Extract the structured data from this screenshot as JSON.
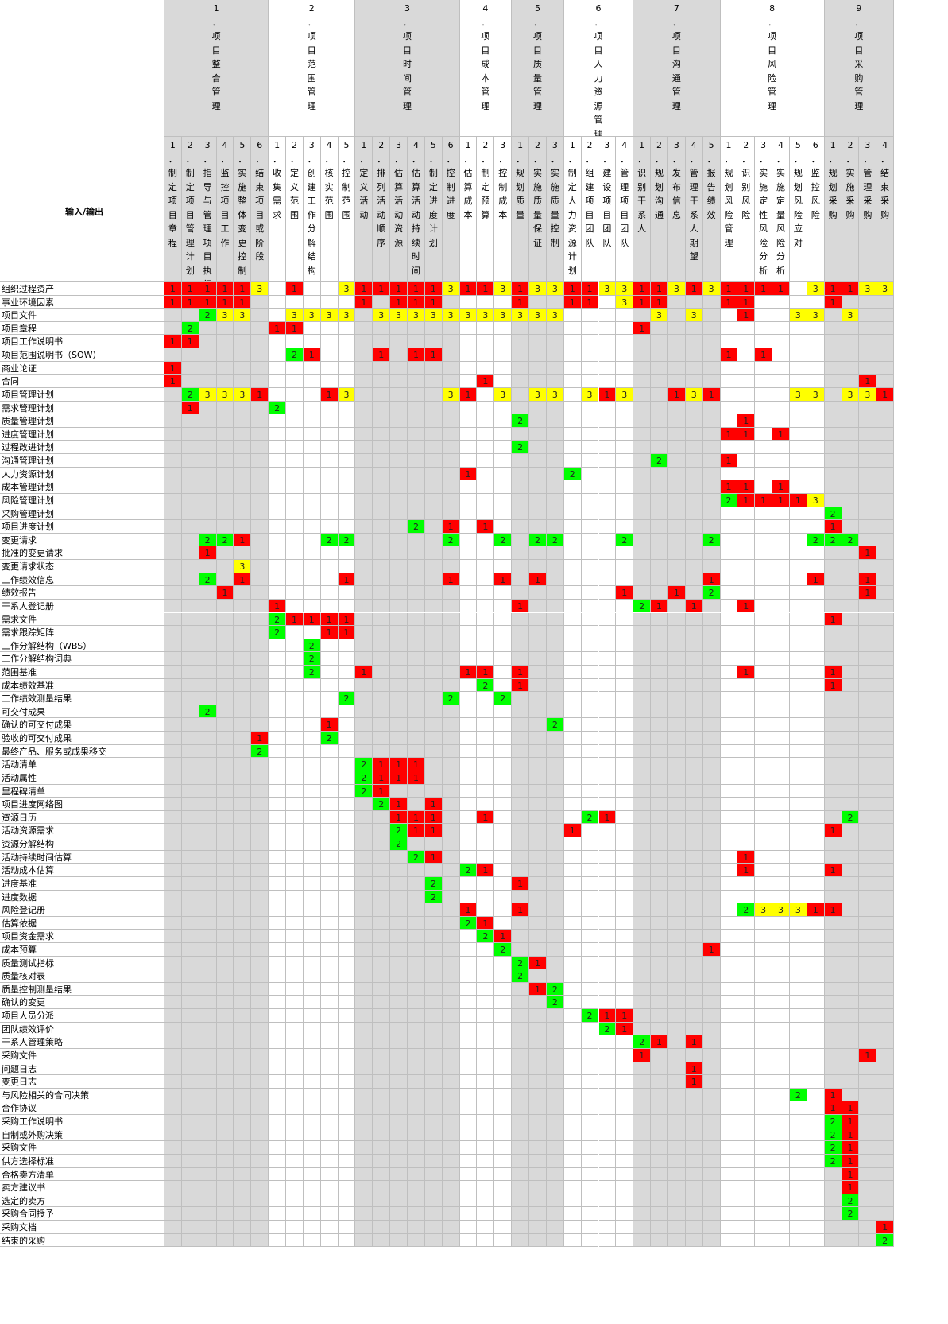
{
  "corner_label": "输入/输出",
  "colors": {
    "red": "#ff0000",
    "yellow": "#ffff00",
    "green": "#00ff00",
    "grey": "#d9d9d9",
    "white": "#ffffff",
    "grid": "#bfbfbf"
  },
  "areas": [
    {
      "label": "1．项目整合管理",
      "shade": "grey"
    },
    {
      "label": "2．项目范围管理",
      "shade": "white"
    },
    {
      "label": "3．项目时间管理",
      "shade": "grey"
    },
    {
      "label": "4．项目成本管理",
      "shade": "white"
    },
    {
      "label": "5．项目质量管理",
      "shade": "grey"
    },
    {
      "label": "6．项目人力资源管理",
      "shade": "white"
    },
    {
      "label": "7．项目沟通管理",
      "shade": "grey"
    },
    {
      "label": "8．项目风险管理",
      "shade": "white"
    },
    {
      "label": "9．项目采购管理",
      "shade": "grey"
    }
  ],
  "processes": [
    {
      "area": 0,
      "label": "1．制定项目章程"
    },
    {
      "area": 0,
      "label": "2．制定项目管理计划"
    },
    {
      "area": 0,
      "label": "3．指导与管理项目执行"
    },
    {
      "area": 0,
      "label": "4．监控项目工作"
    },
    {
      "area": 0,
      "label": "5．实施整体变更控制"
    },
    {
      "area": 0,
      "label": "6．结束项目或阶段"
    },
    {
      "area": 1,
      "label": "1．收集需求"
    },
    {
      "area": 1,
      "label": "2．定义范围"
    },
    {
      "area": 1,
      "label": "3．创建工作分解结构"
    },
    {
      "area": 1,
      "label": "4．核实范围"
    },
    {
      "area": 1,
      "label": "5．控制范围"
    },
    {
      "area": 2,
      "label": "1．定义活动"
    },
    {
      "area": 2,
      "label": "2．排列活动顺序"
    },
    {
      "area": 2,
      "label": "3．估算活动资源"
    },
    {
      "area": 2,
      "label": "4．估算活动持续时间"
    },
    {
      "area": 2,
      "label": "5．制定进度计划"
    },
    {
      "area": 2,
      "label": "6．控制进度"
    },
    {
      "area": 3,
      "label": "1．估算成本"
    },
    {
      "area": 3,
      "label": "2．制定预算"
    },
    {
      "area": 3,
      "label": "3．控制成本"
    },
    {
      "area": 4,
      "label": "1．规划质量"
    },
    {
      "area": 4,
      "label": "2．实施质量保证"
    },
    {
      "area": 4,
      "label": "3．实施质量控制"
    },
    {
      "area": 5,
      "label": "1．制定人力资源计划"
    },
    {
      "area": 5,
      "label": "2．组建项目团队"
    },
    {
      "area": 5,
      "label": "3．建设项目团队"
    },
    {
      "area": 5,
      "label": "4．管理项目团队"
    },
    {
      "area": 6,
      "label": "1．识别干系人"
    },
    {
      "area": 6,
      "label": "2．规划沟通"
    },
    {
      "area": 6,
      "label": "3．发布信息"
    },
    {
      "area": 6,
      "label": "4．管理干系人期望"
    },
    {
      "area": 6,
      "label": "5．报告绩效"
    },
    {
      "area": 7,
      "label": "1．规划风险管理"
    },
    {
      "area": 7,
      "label": "2．识别风险"
    },
    {
      "area": 7,
      "label": "3．实施定性风险分析"
    },
    {
      "area": 7,
      "label": "4．实施定量风险分析"
    },
    {
      "area": 7,
      "label": "5．规划风险应对"
    },
    {
      "area": 7,
      "label": "6．监控风险"
    },
    {
      "area": 8,
      "label": "1．规划采购"
    },
    {
      "area": 8,
      "label": "2．实施采购"
    },
    {
      "area": 8,
      "label": "3．管理采购"
    },
    {
      "area": 8,
      "label": "4．结束采购"
    }
  ],
  "rows": [
    {
      "label": "组织过程资产",
      "cells": {
        "0": 1,
        "1": 1,
        "2": 1,
        "3": 1,
        "4": 1,
        "5": 3,
        "7": 1,
        "10": 3,
        "11": 1,
        "12": 1,
        "13": 1,
        "14": 1,
        "15": 1,
        "16": 3,
        "17": 1,
        "18": 1,
        "19": 3,
        "20": 1,
        "21": 3,
        "22": 3,
        "23": 1,
        "24": 1,
        "25": 3,
        "26": 3,
        "27": 1,
        "28": 1,
        "29": 3,
        "30": 1,
        "31": 3,
        "32": 1,
        "33": 1,
        "34": 1,
        "35": 1,
        "37": 3,
        "38": 1,
        "39": 1,
        "40": 3,
        "41": 3
      }
    },
    {
      "label": "事业环境因素",
      "cells": {
        "0": 1,
        "1": 1,
        "2": 1,
        "3": 1,
        "4": 1,
        "11": 1,
        "13": 1,
        "14": 1,
        "15": 1,
        "20": 1,
        "23": 1,
        "24": 1,
        "26": 3,
        "27": 1,
        "28": 1,
        "32": 1,
        "33": 1,
        "38": 1
      }
    },
    {
      "label": "项目文件",
      "cells": {
        "2": 2,
        "3": 3,
        "4": 3,
        "7": 3,
        "8": 3,
        "9": 3,
        "10": 3,
        "12": 3,
        "13": 3,
        "14": 3,
        "15": 3,
        "16": 3,
        "17": 3,
        "18": 3,
        "19": 3,
        "20": 3,
        "21": 3,
        "22": 3,
        "28": 3,
        "30": 3,
        "33": 1,
        "36": 3,
        "37": 3,
        "39": 3
      }
    },
    {
      "label": "项目章程",
      "cells": {
        "1": 2,
        "6": 1,
        "7": 1,
        "27": 1
      }
    },
    {
      "label": "项目工作说明书",
      "cells": {
        "0": 1,
        "1": 1
      }
    },
    {
      "label": "项目范围说明书（SOW）",
      "cells": {
        "7": 2,
        "8": 1,
        "12": 1,
        "14": 1,
        "15": 1,
        "32": 1,
        "34": 1
      }
    },
    {
      "label": "商业论证",
      "cells": {
        "0": 1
      }
    },
    {
      "label": "合同",
      "cells": {
        "0": 1,
        "18": 1,
        "40": 1
      }
    },
    {
      "label": "项目管理计划",
      "cells": {
        "1": 2,
        "2": 3,
        "3": 3,
        "4": 3,
        "5": 1,
        "9": 1,
        "10": 3,
        "16": 3,
        "17": 1,
        "19": 3,
        "21": 3,
        "22": 3,
        "24": 3,
        "25": 1,
        "26": 3,
        "29": 1,
        "30": 3,
        "31": 1,
        "36": 3,
        "37": 3,
        "39": 3,
        "40": 3,
        "41": 1
      }
    },
    {
      "label": "需求管理计划",
      "cells": {
        "1": 1,
        "6": 2
      }
    },
    {
      "label": "质量管理计划",
      "cells": {
        "20": 2,
        "33": 1
      }
    },
    {
      "label": "进度管理计划",
      "cells": {
        "32": 1,
        "33": 1,
        "35": 1
      }
    },
    {
      "label": "过程改进计划",
      "cells": {
        "20": 2
      }
    },
    {
      "label": "沟通管理计划",
      "cells": {
        "28": 2,
        "32": 1
      }
    },
    {
      "label": "人力资源计划",
      "cells": {
        "17": 1,
        "23": 2
      }
    },
    {
      "label": "成本管理计划",
      "cells": {
        "32": 1,
        "33": 1,
        "35": 1
      }
    },
    {
      "label": "风险管理计划",
      "cells": {
        "32": 2,
        "33": 1,
        "34": 1,
        "35": 1,
        "36": 1,
        "37": 3
      }
    },
    {
      "label": "采购管理计划",
      "cells": {
        "38": 2
      }
    },
    {
      "label": "项目进度计划",
      "cells": {
        "14": 2,
        "16": 1,
        "18": 1,
        "38": 1
      }
    },
    {
      "label": "变更请求",
      "cells": {
        "2": 2,
        "3": 2,
        "4": 1,
        "9": 2,
        "10": 2,
        "16": 2,
        "19": 2,
        "21": 2,
        "22": 2,
        "26": 2,
        "31": 2,
        "37": 2,
        "38": 2,
        "39": 2
      }
    },
    {
      "label": "批准的变更请求",
      "cells": {
        "2": 1,
        "40": 1
      }
    },
    {
      "label": "变更请求状态",
      "cells": {
        "4": 3
      }
    },
    {
      "label": "工作绩效信息",
      "cells": {
        "2": 2,
        "4": 1,
        "10": 1,
        "16": 1,
        "19": 1,
        "21": 1,
        "31": 1,
        "37": 1,
        "40": 1
      }
    },
    {
      "label": "绩效报告",
      "cells": {
        "3": 1,
        "26": 1,
        "29": 1,
        "31": 2,
        "40": 1
      }
    },
    {
      "label": "干系人登记册",
      "cells": {
        "6": 1,
        "20": 1,
        "27": 2,
        "28": 1,
        "30": 1,
        "33": 1
      }
    },
    {
      "label": "需求文件",
      "cells": {
        "6": 2,
        "7": 1,
        "8": 1,
        "9": 1,
        "10": 1,
        "38": 1
      }
    },
    {
      "label": "需求跟踪矩阵",
      "cells": {
        "6": 2,
        "9": 1,
        "10": 1
      }
    },
    {
      "label": "工作分解结构（WBS）",
      "cells": {
        "8": 2
      }
    },
    {
      "label": "工作分解结构词典",
      "cells": {
        "8": 2
      }
    },
    {
      "label": "范围基准",
      "cells": {
        "8": 2,
        "11": 1,
        "17": 1,
        "18": 1,
        "20": 1,
        "33": 1,
        "38": 1
      }
    },
    {
      "label": "成本绩效基准",
      "cells": {
        "18": 2,
        "20": 1,
        "38": 1
      }
    },
    {
      "label": "工作绩效测量结果",
      "cells": {
        "10": 2,
        "16": 2,
        "19": 2
      }
    },
    {
      "label": "可交付成果",
      "cells": {
        "2": 2
      }
    },
    {
      "label": "确认的可交付成果",
      "cells": {
        "9": 1,
        "22": 2
      }
    },
    {
      "label": "验收的可交付成果",
      "cells": {
        "5": 1,
        "9": 2
      }
    },
    {
      "label": "最终产品、服务或成果移交",
      "cells": {
        "5": 2
      }
    },
    {
      "label": "活动清单",
      "cells": {
        "11": 2,
        "12": 1,
        "13": 1,
        "14": 1
      }
    },
    {
      "label": "活动属性",
      "cells": {
        "11": 2,
        "12": 1,
        "13": 1,
        "14": 1
      }
    },
    {
      "label": "里程碑清单",
      "cells": {
        "11": 2,
        "12": 1
      }
    },
    {
      "label": "项目进度网络图",
      "cells": {
        "12": 2,
        "13": 1,
        "15": 1
      }
    },
    {
      "label": "资源日历",
      "cells": {
        "13": 1,
        "14": 1,
        "15": 1,
        "18": 1,
        "24": 2,
        "25": 1,
        "39": 2
      }
    },
    {
      "label": "活动资源需求",
      "cells": {
        "13": 2,
        "14": 1,
        "15": 1,
        "23": 1,
        "38": 1
      }
    },
    {
      "label": "资源分解结构",
      "cells": {
        "13": 2
      }
    },
    {
      "label": "活动持续时间估算",
      "cells": {
        "14": 2,
        "15": 1,
        "33": 1
      }
    },
    {
      "label": "活动成本估算",
      "cells": {
        "17": 2,
        "18": 1,
        "33": 1,
        "38": 1
      }
    },
    {
      "label": "进度基准",
      "cells": {
        "15": 2,
        "20": 1
      }
    },
    {
      "label": "进度数据",
      "cells": {
        "15": 2
      }
    },
    {
      "label": "风险登记册",
      "cells": {
        "17": 1,
        "20": 1,
        "33": 2,
        "34": 3,
        "35": 3,
        "36": 3,
        "37": 1,
        "38": 1
      }
    },
    {
      "label": "估算依据",
      "cells": {
        "17": 2,
        "18": 1
      }
    },
    {
      "label": "项目资金需求",
      "cells": {
        "18": 2,
        "19": 1
      }
    },
    {
      "label": "成本预算",
      "cells": {
        "19": 2,
        "31": 1
      }
    },
    {
      "label": "质量测试指标",
      "cells": {
        "20": 2,
        "21": 1
      }
    },
    {
      "label": "质量核对表",
      "cells": {
        "20": 2
      }
    },
    {
      "label": "质量控制测量结果",
      "cells": {
        "21": 1,
        "22": 2
      }
    },
    {
      "label": "确认的变更",
      "cells": {
        "22": 2
      }
    },
    {
      "label": "项目人员分派",
      "cells": {
        "24": 2,
        "25": 1,
        "26": 1
      }
    },
    {
      "label": "团队绩效评价",
      "cells": {
        "25": 2,
        "26": 1
      }
    },
    {
      "label": "干系人管理策略",
      "cells": {
        "27": 2,
        "28": 1,
        "30": 1
      }
    },
    {
      "label": "采购文件",
      "cells": {
        "27": 1,
        "40": 1
      }
    },
    {
      "label": "问题日志",
      "cells": {
        "30": 1
      }
    },
    {
      "label": "变更日志",
      "cells": {
        "30": 1
      }
    },
    {
      "label": "与风险相关的合同决策",
      "cells": {
        "36": 2,
        "38": 1
      }
    },
    {
      "label": "合作协议",
      "cells": {
        "38": 1,
        "39": 1
      }
    },
    {
      "label": "采购工作说明书",
      "cells": {
        "38": 2,
        "39": 1
      }
    },
    {
      "label": "自制或外购决策",
      "cells": {
        "38": 2,
        "39": 1
      }
    },
    {
      "label": "采购文件",
      "cells": {
        "38": 2,
        "39": 1
      }
    },
    {
      "label": "供方选择标准",
      "cells": {
        "38": 2,
        "39": 1
      }
    },
    {
      "label": "合格卖方清单",
      "cells": {
        "39": 1
      }
    },
    {
      "label": "卖方建议书",
      "cells": {
        "39": 1
      }
    },
    {
      "label": "选定的卖方",
      "cells": {
        "39": 2
      }
    },
    {
      "label": "采购合同授予",
      "cells": {
        "39": 2
      }
    },
    {
      "label": "采购文档",
      "cells": {
        "41": 1
      }
    },
    {
      "label": "结束的采购",
      "cells": {
        "41": 2
      }
    }
  ]
}
